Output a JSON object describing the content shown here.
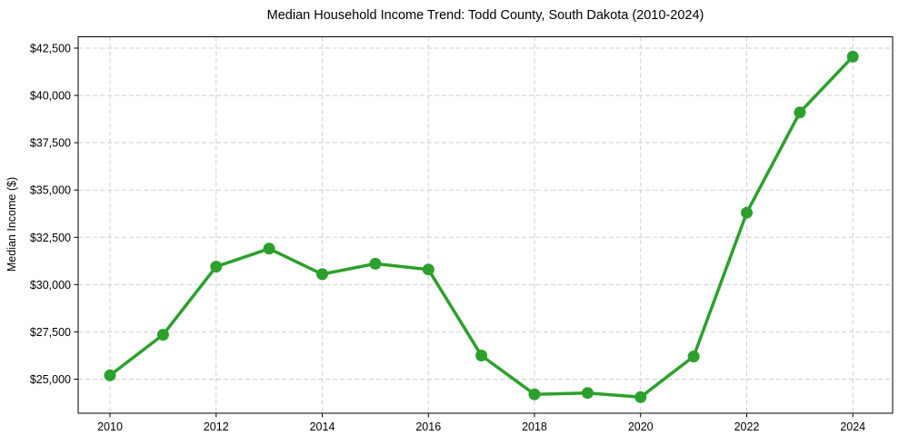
{
  "colors": {
    "line": "#2ca02c",
    "marker": "#2ca02c",
    "grid": "#cfcfcf",
    "axis": "#000000",
    "text": "#000000",
    "background": "#ffffff"
  },
  "chart_data": {
    "type": "line",
    "title": "Median Household Income Trend: Todd County, South Dakota (2010-2024)",
    "xlabel": "",
    "ylabel": "Median Income ($)",
    "x": [
      2010,
      2011,
      2012,
      2013,
      2014,
      2015,
      2016,
      2017,
      2018,
      2019,
      2020,
      2021,
      2022,
      2023,
      2024
    ],
    "values": [
      25200,
      27350,
      30950,
      31900,
      30550,
      31100,
      30800,
      26250,
      24200,
      24270,
      24050,
      26200,
      33800,
      39100,
      42050
    ],
    "x_ticks": [
      2010,
      2012,
      2014,
      2016,
      2018,
      2020,
      2022,
      2024
    ],
    "x_tick_labels": [
      "2010",
      "2012",
      "2014",
      "2016",
      "2018",
      "2020",
      "2022",
      "2024"
    ],
    "y_ticks": [
      25000,
      27500,
      30000,
      32500,
      35000,
      37500,
      40000,
      42500
    ],
    "y_tick_labels": [
      "$25,000",
      "$27,500",
      "$30,000",
      "$32,500",
      "$35,000",
      "$37,500",
      "$40,000",
      "$42,500"
    ],
    "xlim": [
      2009.4,
      2024.75
    ],
    "ylim": [
      23200,
      43100
    ],
    "grid": true,
    "grid_style": "dashed",
    "legend": false,
    "marker": "circle"
  }
}
